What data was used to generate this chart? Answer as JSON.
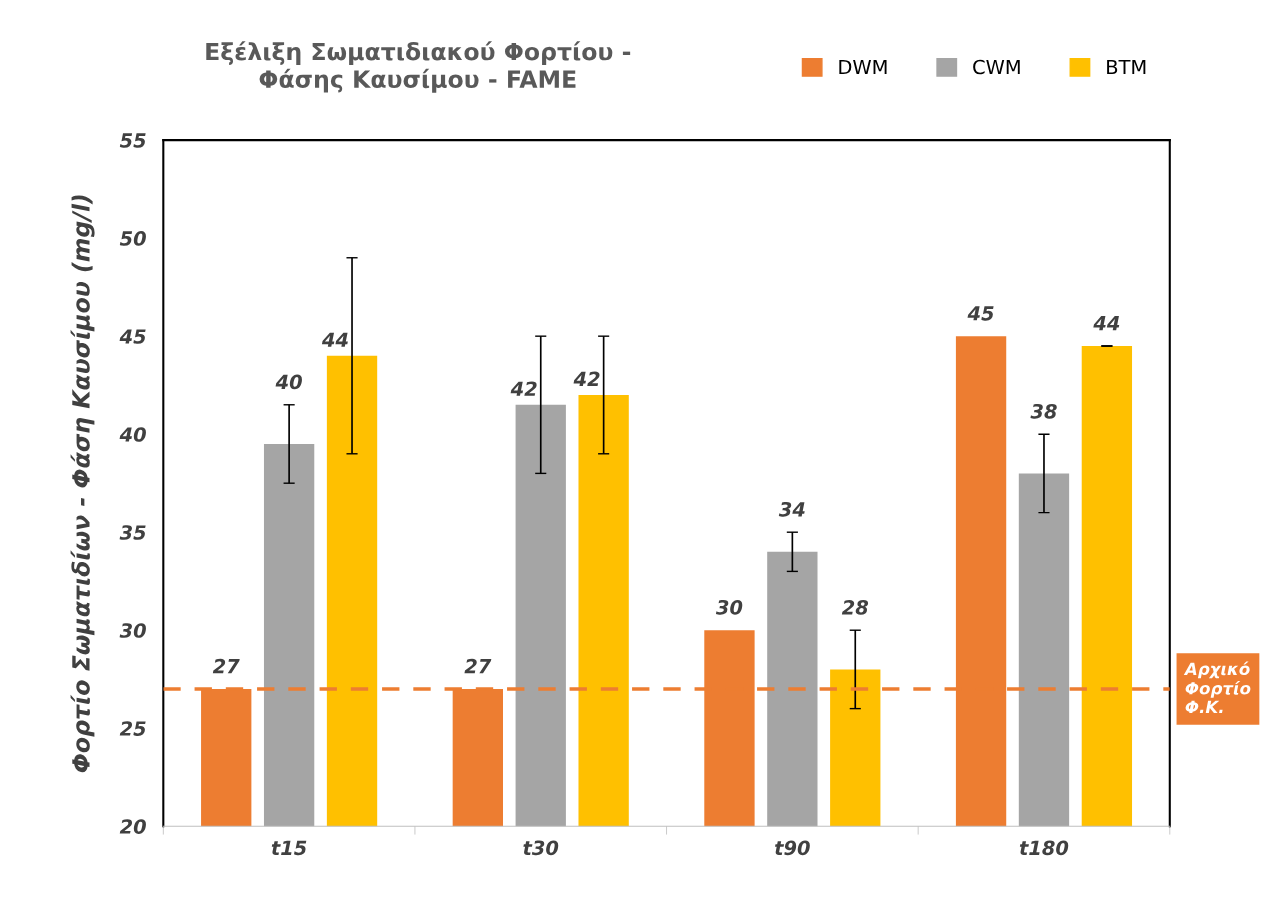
{
  "chart_data": {
    "type": "bar",
    "title": "Εξέλιξη Σωματιδιακού Φορτίου -\nΦάσης Καυσίμου - FAME",
    "ylabel": "Φορτίο Σωματιδίων - Φάση Καυσίμου (mg/l)",
    "categories": [
      "t15",
      "t30",
      "t90",
      "t180"
    ],
    "series": [
      {
        "name": "DWM",
        "color": "#ed7d31",
        "values": [
          27,
          27,
          30,
          45
        ],
        "value_labels": [
          "27",
          "27",
          "30",
          "45"
        ]
      },
      {
        "name": "CWM",
        "color": "#a5a5a5",
        "values": [
          39.5,
          41.5,
          34,
          38
        ],
        "value_labels": [
          "40",
          "42",
          "34",
          "38"
        ],
        "errors": [
          [
            37.5,
            41.5
          ],
          [
            38,
            45
          ],
          [
            33,
            35
          ],
          [
            36,
            40
          ]
        ]
      },
      {
        "name": "BTM",
        "color": "#ffc000",
        "values": [
          44,
          42,
          28,
          44.5
        ],
        "value_labels": [
          "44",
          "42",
          "28",
          "44"
        ],
        "errors": [
          [
            39,
            49
          ],
          [
            39,
            45
          ],
          [
            26,
            30
          ],
          [
            44.5,
            44.5
          ]
        ]
      }
    ],
    "ylim": [
      20,
      55
    ],
    "yticks": [
      20,
      25,
      30,
      35,
      40,
      45,
      50,
      55
    ],
    "ref_lines": [
      {
        "axis": "y",
        "value": 27,
        "label": "Αρχικό\nΦορτίο\nΦ.Κ.",
        "color": "#ed7d31",
        "line_style": "dashed"
      }
    ],
    "legend": "top right",
    "grid": false
  }
}
